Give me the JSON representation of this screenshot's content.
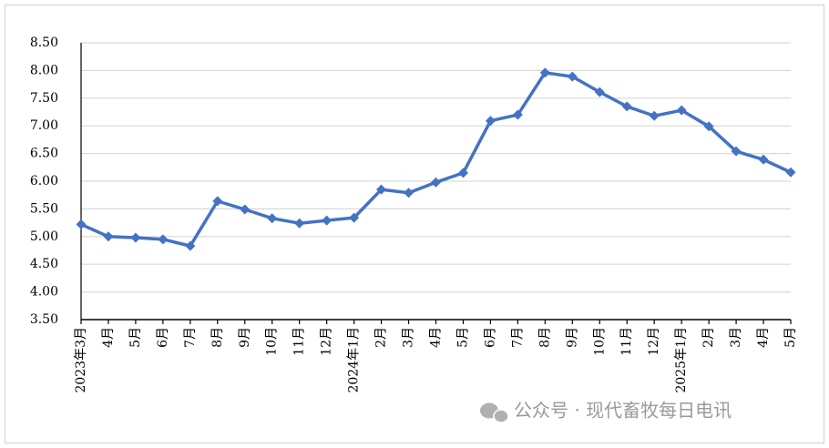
{
  "chart_data": {
    "type": "line",
    "categories": [
      "2023年3月",
      "4月",
      "5月",
      "6月",
      "7月",
      "8月",
      "9月",
      "10月",
      "11月",
      "12月",
      "2024年1月",
      "2月",
      "3月",
      "4月",
      "5月",
      "6月",
      "7月",
      "8月",
      "9月",
      "10月",
      "11月",
      "12月",
      "2025年1月",
      "2月",
      "3月",
      "4月",
      "5月"
    ],
    "series": [
      {
        "color": "#4472c4",
        "values": [
          5.22,
          5.0,
          4.98,
          4.95,
          4.83,
          5.64,
          5.49,
          5.33,
          5.24,
          5.29,
          5.34,
          5.85,
          5.79,
          5.98,
          6.15,
          7.09,
          7.2,
          7.96,
          7.89,
          7.61,
          7.35,
          7.18,
          7.28,
          6.99,
          6.54,
          6.39,
          6.16
        ]
      }
    ],
    "ylim": [
      3.5,
      8.5
    ],
    "yticks": [
      {
        "value": 3.5,
        "label": "3.50"
      },
      {
        "value": 4,
        "label": "4.00"
      },
      {
        "value": 4.5,
        "label": "4.50"
      },
      {
        "value": 5,
        "label": "5.00"
      },
      {
        "value": 5.5,
        "label": "5.50"
      },
      {
        "value": 6,
        "label": "6.00"
      },
      {
        "value": 6.5,
        "label": "6.50"
      },
      {
        "value": 7,
        "label": "7.00"
      },
      {
        "value": 7.5,
        "label": "7.50"
      },
      {
        "value": 8,
        "label": "8.00"
      },
      {
        "value": 8.5,
        "label": "8.50"
      }
    ],
    "grid": true,
    "annotation": "公众号 · 现代畜牧每日电讯"
  }
}
